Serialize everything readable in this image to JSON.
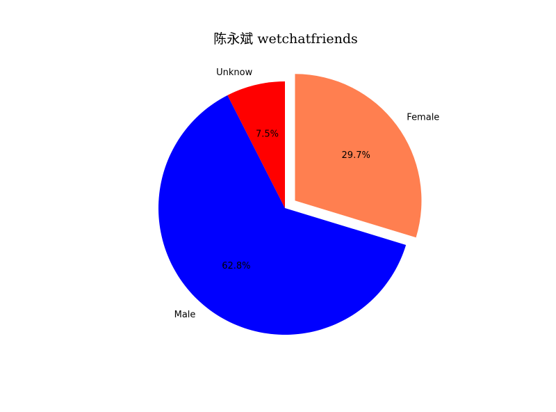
{
  "chart_data": {
    "type": "pie",
    "title": "陈永斌 wetchatfriends",
    "slices": [
      {
        "label": "Female",
        "value": 29.7,
        "pct_label": "29.7%",
        "color": "#ff7f50",
        "explode": true
      },
      {
        "label": "Male",
        "value": 62.8,
        "pct_label": "62.8%",
        "color": "#0000ff",
        "explode": false
      },
      {
        "label": "Unknow",
        "value": 7.5,
        "pct_label": "7.5%",
        "color": "#ff0000",
        "explode": false
      }
    ],
    "start_angle_deg": 90,
    "direction": "clockwise"
  }
}
